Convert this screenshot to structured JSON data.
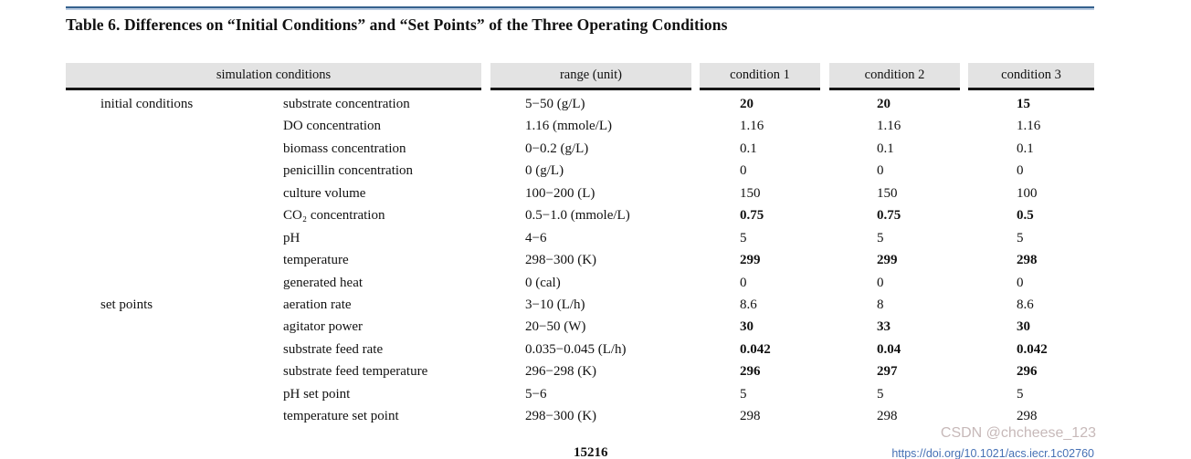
{
  "title": "Table 6. Differences on “Initial Conditions” and “Set Points” of the Three Operating Conditions",
  "table": {
    "header": {
      "sim_conditions": "simulation conditions",
      "range": "range (unit)",
      "cond1": "condition 1",
      "cond2": "condition 2",
      "cond3": "condition 3"
    },
    "rows": [
      {
        "group": "initial conditions",
        "param": "substrate concentration",
        "range": "5−50 (g/L)",
        "c1": "20",
        "c2": "20",
        "c3": "15",
        "bold": true
      },
      {
        "group": "",
        "param": "DO concentration",
        "range": "1.16 (mmole/L)",
        "c1": "1.16",
        "c2": "1.16",
        "c3": "1.16",
        "bold": false
      },
      {
        "group": "",
        "param": "biomass concentration",
        "range": "0−0.2 (g/L)",
        "c1": "0.1",
        "c2": "0.1",
        "c3": "0.1",
        "bold": false
      },
      {
        "group": "",
        "param": "penicillin concentration",
        "range": "0 (g/L)",
        "c1": "0",
        "c2": "0",
        "c3": "0",
        "bold": false
      },
      {
        "group": "",
        "param": "culture volume",
        "range": "100−200 (L)",
        "c1": "150",
        "c2": "150",
        "c3": "100",
        "bold": false
      },
      {
        "group": "",
        "param": "CO₂ concentration",
        "range": "0.5−1.0 (mmole/L)",
        "c1": "0.75",
        "c2": "0.75",
        "c3": "0.5",
        "bold": true
      },
      {
        "group": "",
        "param": "pH",
        "range": "4−6",
        "c1": "5",
        "c2": "5",
        "c3": "5",
        "bold": false
      },
      {
        "group": "",
        "param": "temperature",
        "range": "298−300 (K)",
        "c1": "299",
        "c2": "299",
        "c3": "298",
        "bold": true
      },
      {
        "group": "",
        "param": "generated heat",
        "range": "0 (cal)",
        "c1": "0",
        "c2": "0",
        "c3": "0",
        "bold": false
      },
      {
        "group": "set points",
        "param": "aeration rate",
        "range": "3−10 (L/h)",
        "c1": "8.6",
        "c2": "8",
        "c3": "8.6",
        "bold": false
      },
      {
        "group": "",
        "param": "agitator power",
        "range": "20−50 (W)",
        "c1": "30",
        "c2": "33",
        "c3": "30",
        "bold": true
      },
      {
        "group": "",
        "param": "substrate feed rate",
        "range": "0.035−0.045 (L/h)",
        "c1": "0.042",
        "c2": "0.04",
        "c3": "0.042",
        "bold": true
      },
      {
        "group": "",
        "param": "substrate feed temperature",
        "range": "296−298 (K)",
        "c1": "296",
        "c2": "297",
        "c3": "296",
        "bold": true
      },
      {
        "group": "",
        "param": "pH set point",
        "range": "5−6",
        "c1": "5",
        "c2": "5",
        "c3": "5",
        "bold": false
      },
      {
        "group": "",
        "param": "temperature set point",
        "range": "298−300 (K)",
        "c1": "298",
        "c2": "298",
        "c3": "298",
        "bold": false
      }
    ]
  },
  "footer": {
    "page_number": "15216",
    "doi_link": "https://doi.org/10.1021/acs.iecr.1c02760",
    "watermark": "CSDN @chcheese_123"
  },
  "colors": {
    "top_rule_dark": "#35618e",
    "top_rule_light": "#b8cadf",
    "header_background": "#e3e3e3",
    "link_blue": "#4671b5",
    "watermark_gray": "#c7b9b9"
  }
}
